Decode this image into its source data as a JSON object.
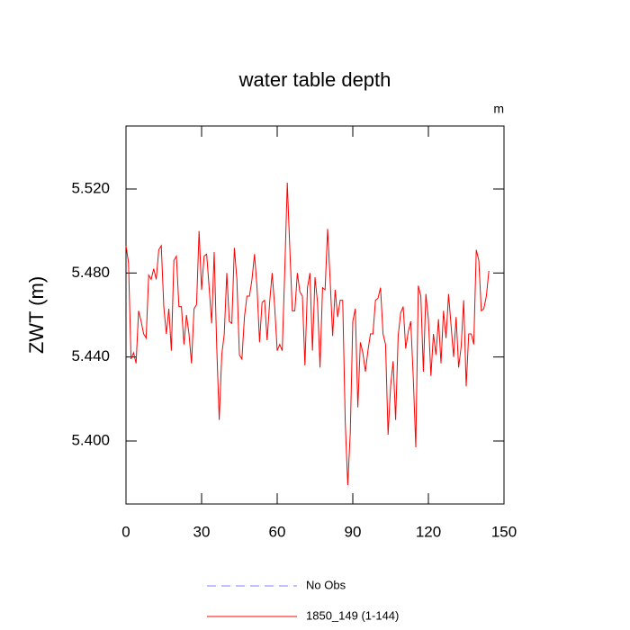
{
  "chart_data": {
    "type": "line",
    "title": "water table depth",
    "y_label": "ZWT  (m)",
    "units": "m",
    "x": [
      0,
      1,
      2,
      3,
      4,
      5,
      6,
      7,
      8,
      9,
      10,
      11,
      12,
      13,
      14,
      15,
      16,
      17,
      18,
      19,
      20,
      21,
      22,
      23,
      24,
      25,
      26,
      27,
      28,
      29,
      30,
      31,
      32,
      33,
      34,
      35,
      36,
      37,
      38,
      39,
      40,
      41,
      42,
      43,
      44,
      45,
      46,
      47,
      48,
      49,
      50,
      51,
      52,
      53,
      54,
      55,
      56,
      57,
      58,
      59,
      60,
      61,
      62,
      63,
      64,
      65,
      66,
      67,
      68,
      69,
      70,
      71,
      72,
      73,
      74,
      75,
      76,
      77,
      78,
      79,
      80,
      81,
      82,
      83,
      84,
      85,
      86,
      87,
      88,
      89,
      90,
      91,
      92,
      93,
      94,
      95,
      96,
      97,
      98,
      99,
      100,
      101,
      102,
      103,
      104,
      105,
      106,
      107,
      108,
      109,
      110,
      111,
      112,
      113,
      114,
      115,
      116,
      117,
      118,
      119,
      120,
      121,
      122,
      123,
      124,
      125,
      126,
      127,
      128,
      129,
      130,
      131,
      132,
      133,
      134,
      135,
      136,
      137,
      138,
      139,
      140,
      141,
      142,
      143,
      144
    ],
    "series": [
      {
        "name": "No Obs",
        "color": "#8080ff",
        "dashed": true,
        "values": [
          null,
          null,
          null,
          null,
          null,
          null,
          null,
          null,
          null,
          null,
          null,
          null,
          null,
          null,
          null,
          null,
          null,
          null,
          null,
          null,
          null,
          null,
          null,
          null,
          null,
          null,
          null,
          null,
          null,
          null,
          null,
          null,
          null,
          null,
          null,
          null,
          null,
          null,
          null,
          null,
          null,
          null,
          null,
          null,
          null,
          null,
          null,
          null,
          null,
          null,
          null,
          null,
          null,
          null,
          null,
          null,
          null,
          null,
          null,
          null,
          null,
          null,
          null,
          null,
          null,
          null,
          null,
          null,
          null,
          null,
          null,
          null,
          null,
          null,
          null,
          null,
          null,
          null,
          null,
          null,
          null,
          null,
          null,
          null,
          null,
          null,
          null,
          null,
          null,
          null,
          null,
          null,
          null,
          null,
          null,
          null,
          null,
          null,
          null,
          null,
          null,
          null,
          null,
          null,
          null,
          null,
          null,
          null,
          null,
          null,
          null,
          null,
          null,
          null,
          null,
          null,
          null,
          null,
          null,
          null,
          null,
          null,
          null,
          null,
          null,
          null,
          null,
          null,
          null,
          null,
          null,
          null,
          null,
          null,
          null,
          null,
          null,
          null,
          null,
          null,
          null,
          null,
          null,
          null,
          null
        ]
      },
      {
        "name": "1850_149 (1-144)",
        "color": "#ff0000",
        "dashed": false,
        "values": [
          5.493,
          5.485,
          5.439,
          5.442,
          5.437,
          5.462,
          5.457,
          5.451,
          5.449,
          5.479,
          5.477,
          5.482,
          5.477,
          5.491,
          5.493,
          5.464,
          5.451,
          5.463,
          5.443,
          5.486,
          5.488,
          5.464,
          5.464,
          5.446,
          5.46,
          5.451,
          5.437,
          5.463,
          5.465,
          5.5,
          5.472,
          5.488,
          5.489,
          5.473,
          5.456,
          5.49,
          5.445,
          5.41,
          5.441,
          5.451,
          5.48,
          5.457,
          5.456,
          5.492,
          5.477,
          5.441,
          5.439,
          5.459,
          5.469,
          5.469,
          5.477,
          5.489,
          5.473,
          5.447,
          5.466,
          5.467,
          5.448,
          5.466,
          5.48,
          5.464,
          5.443,
          5.446,
          5.443,
          5.481,
          5.523,
          5.492,
          5.462,
          5.462,
          5.48,
          5.471,
          5.469,
          5.436,
          5.473,
          5.48,
          5.443,
          5.478,
          5.466,
          5.435,
          5.473,
          5.472,
          5.501,
          5.477,
          5.45,
          5.472,
          5.459,
          5.467,
          5.467,
          5.409,
          5.379,
          5.404,
          5.457,
          5.463,
          5.416,
          5.447,
          5.442,
          5.433,
          5.443,
          5.451,
          5.451,
          5.467,
          5.468,
          5.473,
          5.451,
          5.446,
          5.403,
          5.426,
          5.438,
          5.41,
          5.45,
          5.461,
          5.464,
          5.444,
          5.452,
          5.457,
          5.43,
          5.397,
          5.474,
          5.469,
          5.433,
          5.47,
          5.458,
          5.431,
          5.451,
          5.441,
          5.458,
          5.437,
          5.462,
          5.449,
          5.47,
          5.455,
          5.44,
          5.459,
          5.435,
          5.445,
          5.467,
          5.426,
          5.451,
          5.451,
          5.446,
          5.491,
          5.486,
          5.462,
          5.463,
          5.469,
          5.481
        ]
      }
    ],
    "xlim": [
      0,
      150
    ],
    "xticks": [
      0,
      30,
      60,
      90,
      120,
      150
    ],
    "ylim": [
      5.37,
      5.55
    ],
    "yticks": [
      {
        "value": 5.4,
        "label": "5.400"
      },
      {
        "value": 5.44,
        "label": "5.440"
      },
      {
        "value": 5.48,
        "label": "5.480"
      },
      {
        "value": 5.52,
        "label": "5.520"
      }
    ],
    "grid": false
  }
}
